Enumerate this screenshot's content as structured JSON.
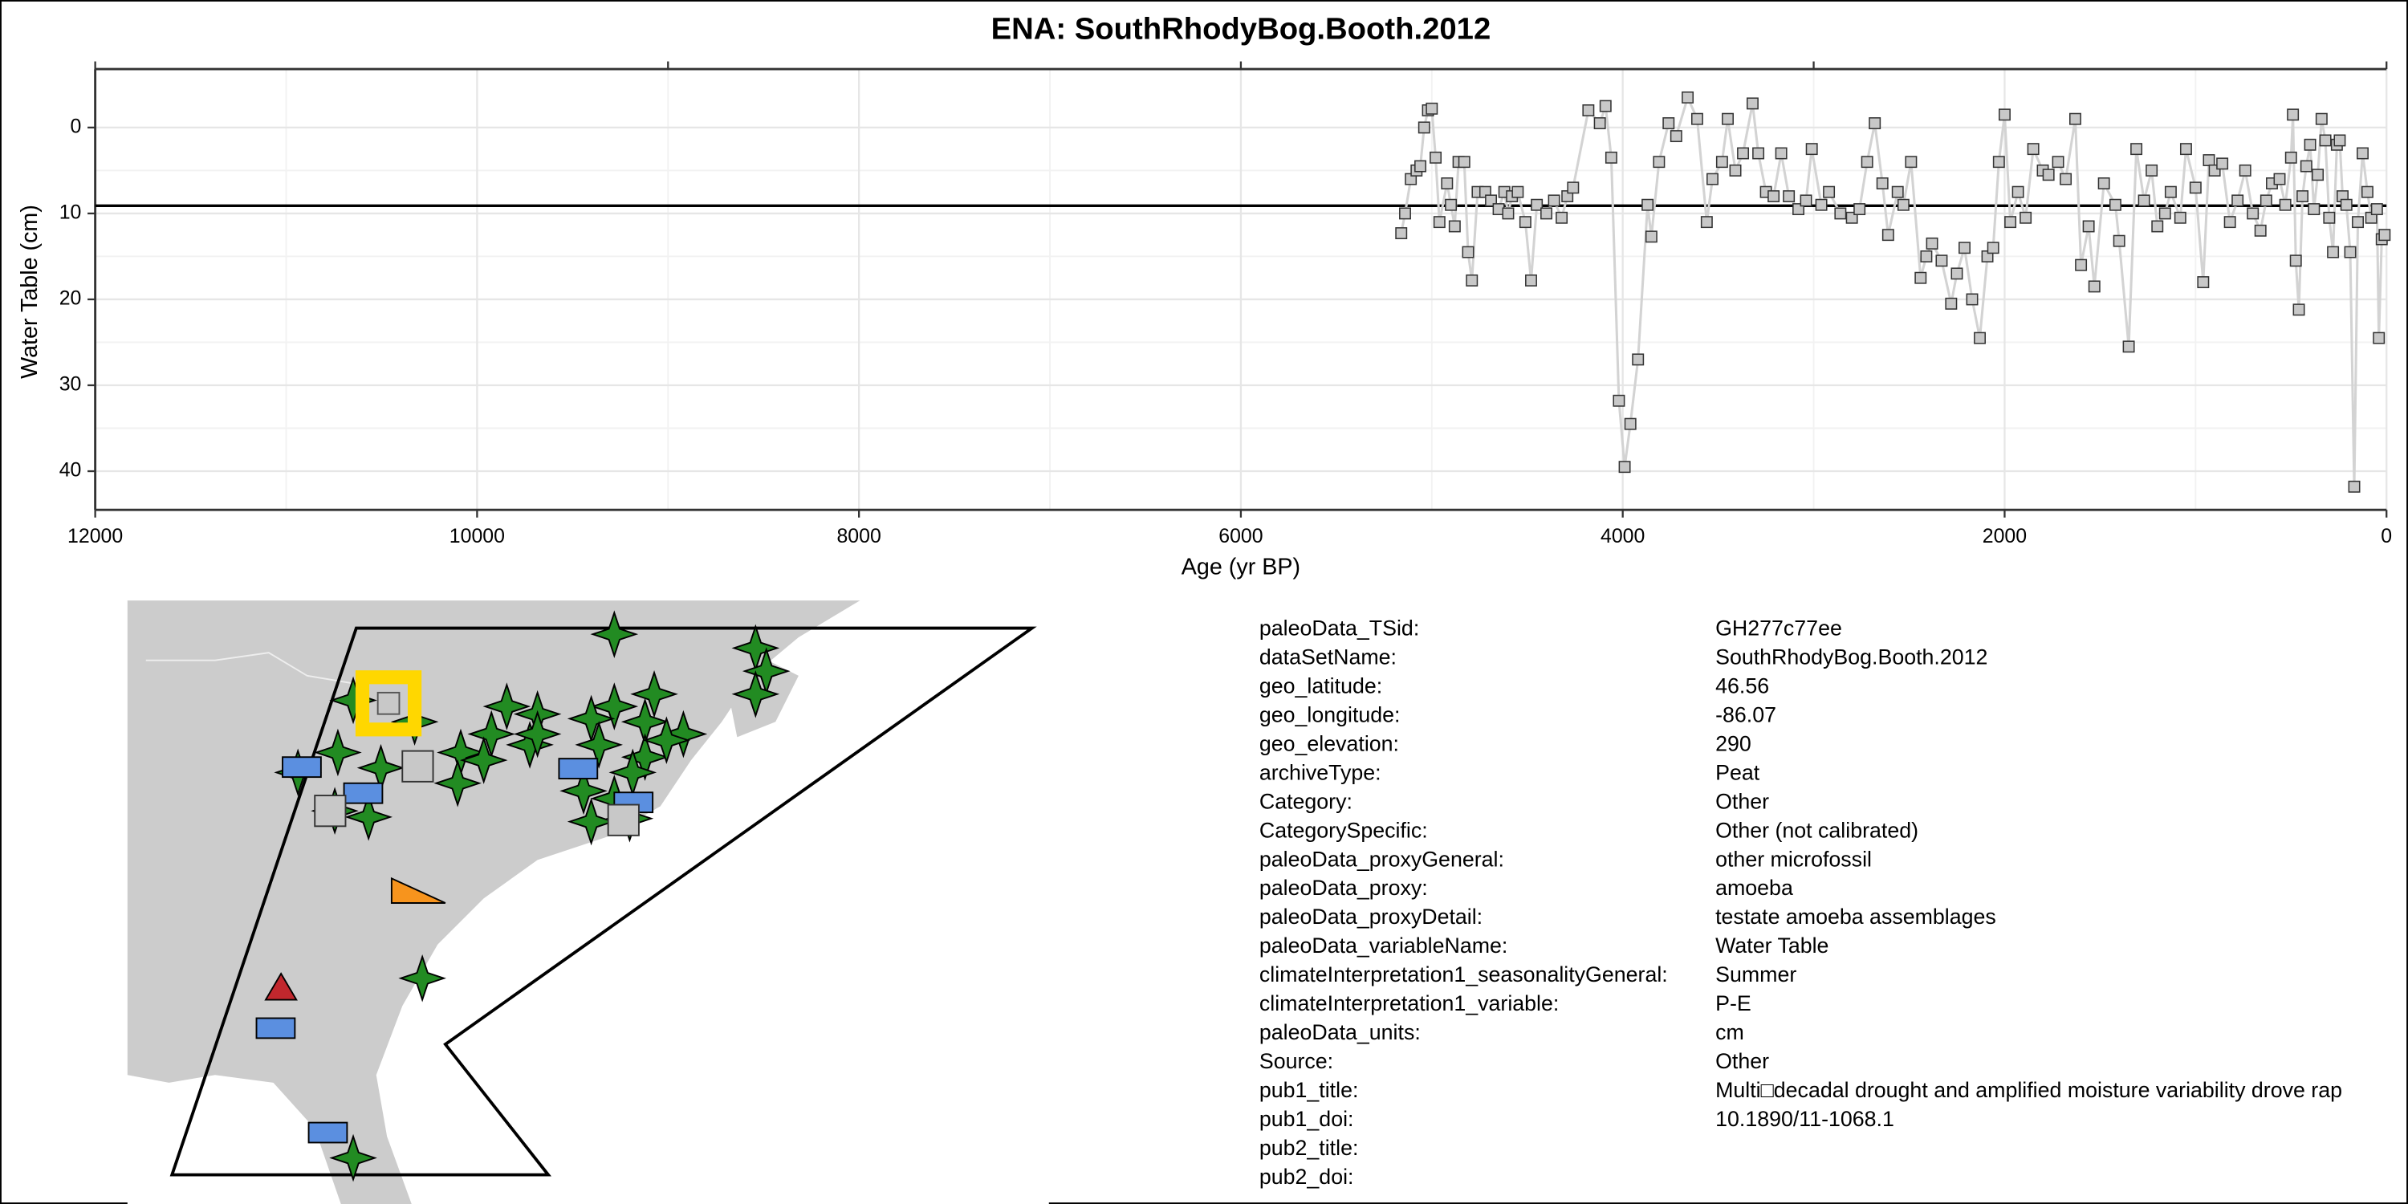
{
  "chart_data": {
    "type": "line",
    "title": "ENA: SouthRhodyBog.Booth.2012",
    "x_label": "Age (yr BP)",
    "y_label": "Water Table (cm)",
    "xlim": [
      12000,
      0
    ],
    "xticks": [
      12000,
      10000,
      8000,
      6000,
      4000,
      2000,
      0
    ],
    "x2ticks": [
      12000,
      9000,
      6000,
      3000,
      0
    ],
    "ylim": [
      -6.8,
      44.5
    ],
    "y_reversed": true,
    "yticks": [
      0,
      10,
      20,
      30,
      40
    ],
    "grid": true,
    "hline": 9.1,
    "line_color": "#d3d3d3",
    "marker_color": "#c8c8c8",
    "x": [
      5160,
      5140,
      5110,
      5080,
      5060,
      5040,
      5020,
      5000,
      4980,
      4960,
      4920,
      4900,
      4880,
      4860,
      4830,
      4810,
      4790,
      4760,
      4720,
      4690,
      4650,
      4620,
      4600,
      4580,
      4550,
      4510,
      4480,
      4450,
      4400,
      4360,
      4320,
      4290,
      4260,
      4180,
      4120,
      4090,
      4060,
      4020,
      3990,
      3960,
      3920,
      3870,
      3850,
      3810,
      3760,
      3720,
      3660,
      3610,
      3560,
      3530,
      3480,
      3450,
      3410,
      3370,
      3320,
      3290,
      3250,
      3210,
      3170,
      3130,
      3080,
      3040,
      3010,
      2960,
      2920,
      2860,
      2800,
      2760,
      2720,
      2680,
      2640,
      2610,
      2560,
      2530,
      2490,
      2440,
      2410,
      2380,
      2330,
      2280,
      2250,
      2210,
      2170,
      2130,
      2090,
      2060,
      2030,
      2000,
      1970,
      1930,
      1890,
      1850,
      1800,
      1770,
      1720,
      1680,
      1630,
      1600,
      1560,
      1530,
      1480,
      1420,
      1400,
      1350,
      1310,
      1270,
      1230,
      1200,
      1160,
      1130,
      1080,
      1050,
      1000,
      960,
      930,
      900,
      860,
      820,
      780,
      740,
      700,
      660,
      630,
      600,
      560,
      530,
      500,
      490,
      475,
      459,
      440,
      420,
      400,
      380,
      360,
      340,
      320,
      300,
      280,
      260,
      245,
      230,
      210,
      190,
      169,
      150,
      125,
      100,
      80,
      50,
      40,
      25,
      10
    ],
    "values": [
      12.3,
      10,
      6,
      5,
      4.5,
      0,
      -2,
      -2.2,
      3.5,
      11,
      6.5,
      9,
      11.5,
      4,
      4,
      14.5,
      17.8,
      7.5,
      7.5,
      8.5,
      9.5,
      7.5,
      10,
      8,
      7.5,
      11,
      17.8,
      9,
      10,
      8.5,
      10.5,
      8,
      7,
      -2,
      -0.5,
      -2.5,
      3.5,
      31.8,
      39.5,
      34.5,
      27,
      9,
      12.7,
      4,
      -0.5,
      1,
      -3.5,
      -1,
      11,
      6,
      4,
      -1,
      5,
      3,
      -2.8,
      3,
      7.5,
      8,
      3,
      8,
      9.5,
      8.5,
      2.5,
      9,
      7.5,
      10,
      10.5,
      9.5,
      4,
      -0.5,
      6.5,
      12.5,
      7.5,
      9,
      4,
      17.5,
      15,
      13.5,
      15.5,
      20.5,
      17,
      14,
      20,
      24.5,
      15,
      14,
      4,
      -1.5,
      11,
      7.5,
      10.5,
      2.5,
      5,
      5.5,
      4,
      6,
      -1,
      16,
      11.5,
      18.5,
      6.5,
      9,
      13.2,
      25.5,
      2.5,
      8.5,
      5,
      11.5,
      10,
      7.5,
      10.5,
      2.5,
      7,
      18,
      3.8,
      5,
      4.2,
      11,
      8.5,
      5,
      10,
      12,
      8.5,
      6.5,
      6,
      9,
      3.5,
      -1.5,
      15.5,
      21.2,
      8,
      4.5,
      2,
      9.5,
      5.5,
      -1,
      1.5,
      10.5,
      14.5,
      2,
      1.5,
      8,
      9,
      14.5,
      41.8,
      11,
      3,
      7.5,
      10.5,
      9.5,
      24.5,
      13,
      12.5
    ]
  },
  "metadata": {
    "rows": [
      [
        "paleoData_TSid:",
        "GH277c77ee"
      ],
      [
        "dataSetName:",
        "SouthRhodyBog.Booth.2012"
      ],
      [
        "geo_latitude:",
        "46.56"
      ],
      [
        "geo_longitude:",
        "-86.07"
      ],
      [
        "geo_elevation:",
        "290"
      ],
      [
        "archiveType:",
        "Peat"
      ],
      [
        "Category:",
        "Other"
      ],
      [
        "CategorySpecific:",
        "Other (not calibrated)"
      ],
      [
        "paleoData_proxyGeneral:",
        "other microfossil"
      ],
      [
        "paleoData_proxy:",
        "amoeba"
      ],
      [
        "paleoData_proxyDetail:",
        "testate amoeba assemblages"
      ],
      [
        "paleoData_variableName:",
        "Water Table"
      ],
      [
        "climateInterpretation1_seasonalityGeneral:",
        "Summer"
      ],
      [
        "climateInterpretation1_variable:",
        "P-E"
      ],
      [
        "paleoData_units:",
        "cm"
      ],
      [
        "Source:",
        "Other"
      ],
      [
        "pub1_title:",
        "Multi□decadal drought and amplified moisture variability drove rap"
      ],
      [
        "pub1_doi:",
        "10.1890/11-1068.1"
      ],
      [
        "pub2_title:"
      ],
      [
        "pub2_doi:"
      ]
    ]
  }
}
